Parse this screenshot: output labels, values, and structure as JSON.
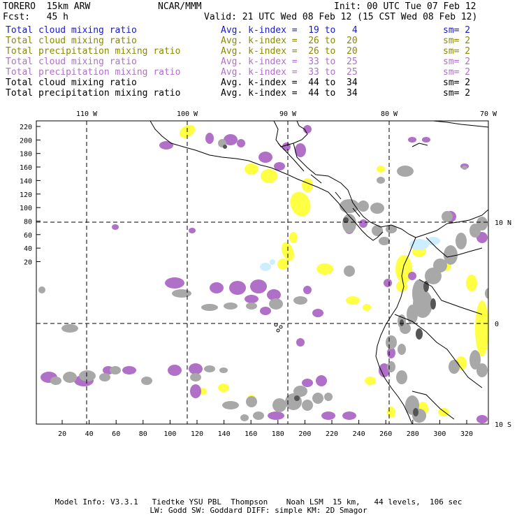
{
  "header": {
    "model": "TORERO  15km ARW",
    "org": "NCAR/MMM",
    "init": "Init: 00 UTC Tue 07 Feb 12",
    "fcst": "Fcst:   45 h",
    "valid": "Valid: 21 UTC Wed 08 Feb 12 (15 CST Wed 08 Feb 12)"
  },
  "legend": [
    {
      "name": "Total cloud mixing ratio",
      "kindex": "Avg. k-index =  19 to   4",
      "sm": "sm= 2",
      "color": "#1a1acc"
    },
    {
      "name": "Total cloud mixing ratio",
      "kindex": "Avg. k-index =  26 to  20",
      "sm": "sm= 2",
      "color": "#8a8a00"
    },
    {
      "name": "Total precipitation mixing ratio",
      "kindex": "Avg. k-index =  26 to  20",
      "sm": "sm= 2",
      "color": "#8a8a00"
    },
    {
      "name": "Total cloud mixing ratio",
      "kindex": "Avg. k-index =  33 to  25",
      "sm": "sm= 2",
      "color": "#b070c8"
    },
    {
      "name": "Total precipitation mixing ratio",
      "kindex": "Avg. k-index =  33 to  25",
      "sm": "sm= 2",
      "color": "#b070c8"
    },
    {
      "name": "Total cloud mixing ratio",
      "kindex": "Avg. k-index =  44 to  34",
      "sm": "sm= 2",
      "color": "#000000"
    },
    {
      "name": "Total precipitation mixing ratio",
      "kindex": "Avg. k-index =  44 to  34",
      "sm": "sm= 2",
      "color": "#000000"
    }
  ],
  "map": {
    "lon_labels": [
      "110 W",
      "100 W",
      "90 W",
      "80 W",
      "70 W"
    ],
    "lat_labels": [
      "10 N",
      "0",
      "10 S"
    ],
    "y_ticks": [
      "220",
      "200",
      "180",
      "160",
      "140",
      "120",
      "100",
      "80",
      "60",
      "40",
      "20"
    ],
    "x_ticks": [
      "20",
      "40",
      "60",
      "80",
      "100",
      "120",
      "140",
      "160",
      "180",
      "200",
      "220",
      "240",
      "260",
      "280",
      "300",
      "320"
    ],
    "colors": {
      "yellow": "#ffff44",
      "purple": "#b070c8",
      "gray": "#a8a8a8",
      "dark": "#555555",
      "cyan": "#cceeff",
      "coast": "#000000"
    }
  },
  "footer": {
    "line1": "Model Info: V3.3.1   Tiedtke YSU PBL  Thompson    Noah LSM  15 km,   44 levels,  106 sec",
    "line2": "LW: Godd SW: Goddard DIFF: simple KM: 2D Smagor"
  }
}
